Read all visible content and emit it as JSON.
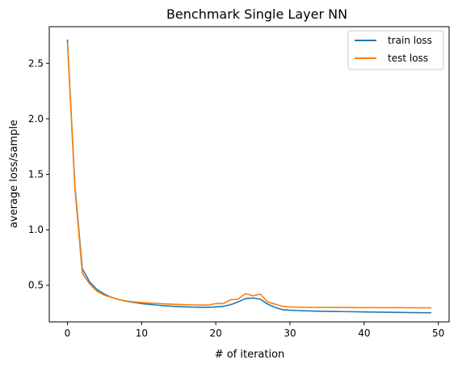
{
  "chart_data": {
    "type": "line",
    "title": "Benchmark Single Layer NN",
    "xlabel": "# of iteration",
    "ylabel": "average loss/sample",
    "xlim": [
      -2.45,
      51.45
    ],
    "ylim": [
      0.17,
      2.83
    ],
    "xticks": [
      0,
      10,
      20,
      30,
      40,
      50
    ],
    "yticks": [
      0.5,
      1.0,
      1.5,
      2.0,
      2.5
    ],
    "xtick_labels": [
      "0",
      "10",
      "20",
      "30",
      "40",
      "50"
    ],
    "ytick_labels": [
      "0.5",
      "1.0",
      "1.5",
      "2.0",
      "2.5"
    ],
    "grid": false,
    "legend_position": "top-right",
    "x": [
      0,
      1,
      2,
      3,
      4,
      5,
      6,
      7,
      8,
      9,
      10,
      11,
      12,
      13,
      14,
      15,
      16,
      17,
      18,
      19,
      20,
      21,
      22,
      23,
      24,
      25,
      26,
      27,
      28,
      29,
      30,
      31,
      32,
      33,
      34,
      35,
      36,
      37,
      38,
      39,
      40,
      41,
      42,
      43,
      44,
      45,
      46,
      47,
      48,
      49
    ],
    "series": [
      {
        "name": "train loss",
        "color": "#1f77b4",
        "values": [
          2.71,
          1.4,
          0.65,
          0.53,
          0.46,
          0.42,
          0.39,
          0.37,
          0.355,
          0.345,
          0.335,
          0.328,
          0.322,
          0.316,
          0.312,
          0.308,
          0.305,
          0.303,
          0.302,
          0.302,
          0.305,
          0.31,
          0.325,
          0.35,
          0.38,
          0.385,
          0.375,
          0.33,
          0.3,
          0.28,
          0.275,
          0.272,
          0.27,
          0.268,
          0.266,
          0.265,
          0.264,
          0.263,
          0.262,
          0.261,
          0.26,
          0.259,
          0.258,
          0.257,
          0.256,
          0.255,
          0.254,
          0.253,
          0.252,
          0.252
        ]
      },
      {
        "name": "test loss",
        "color": "#ff7f0e",
        "values": [
          2.69,
          1.38,
          0.61,
          0.51,
          0.445,
          0.41,
          0.39,
          0.37,
          0.358,
          0.35,
          0.345,
          0.34,
          0.337,
          0.333,
          0.33,
          0.327,
          0.325,
          0.323,
          0.322,
          0.322,
          0.335,
          0.335,
          0.37,
          0.375,
          0.425,
          0.405,
          0.42,
          0.35,
          0.33,
          0.31,
          0.305,
          0.303,
          0.302,
          0.301,
          0.301,
          0.3,
          0.3,
          0.3,
          0.3,
          0.299,
          0.299,
          0.299,
          0.298,
          0.298,
          0.298,
          0.298,
          0.297,
          0.297,
          0.297,
          0.297
        ]
      }
    ]
  }
}
